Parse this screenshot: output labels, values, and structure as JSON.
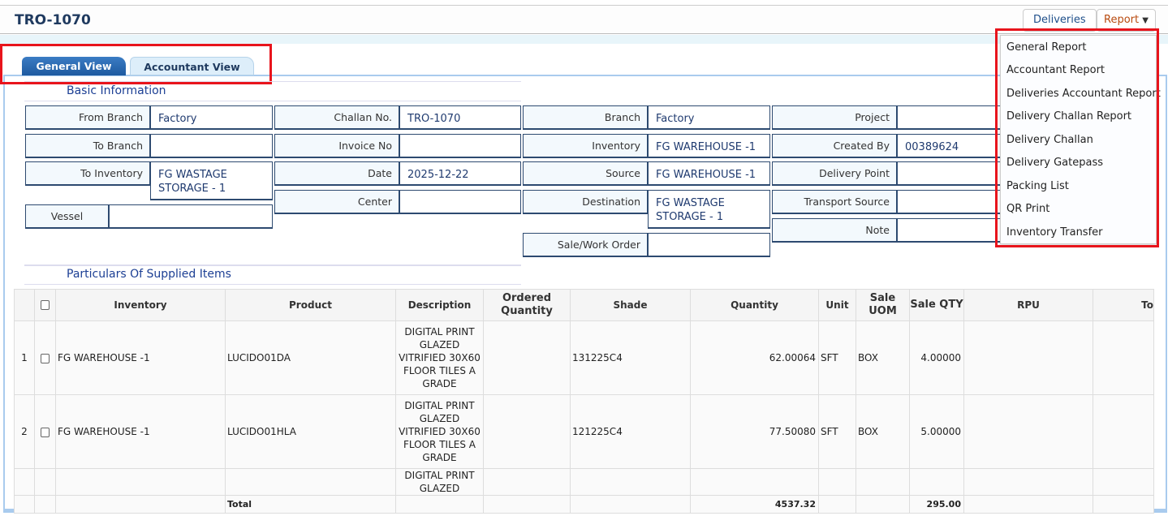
{
  "header": {
    "title": "TRO-1070",
    "deliveries_label": "Deliveries",
    "report_label": "Report",
    "report_icon": "chevron-down-icon"
  },
  "tabs": [
    {
      "label": "General View",
      "active": true
    },
    {
      "label": "Accountant View",
      "active": false
    }
  ],
  "basic": {
    "title": "Basic Information",
    "fields": [
      {
        "label": "From Branch",
        "value": "Factory"
      },
      {
        "label": "To Branch",
        "value": ""
      },
      {
        "label": "To Inventory",
        "value": "FG WASTAGE STORAGE - 1"
      },
      {
        "label": "Vessel",
        "value": ""
      },
      {
        "label": "Challan No.",
        "value": "TRO-1070"
      },
      {
        "label": "Invoice No",
        "value": ""
      },
      {
        "label": "Date",
        "value": "2025-12-22"
      },
      {
        "label": "Center",
        "value": ""
      },
      {
        "label": "Branch",
        "value": "Factory"
      },
      {
        "label": "Inventory",
        "value": "FG WAREHOUSE -1"
      },
      {
        "label": "Source",
        "value": "FG WAREHOUSE -1"
      },
      {
        "label": "Destination",
        "value": "FG WASTAGE STORAGE - 1"
      },
      {
        "label": "Sale/Work Order",
        "value": ""
      },
      {
        "label": "Project",
        "value": ""
      },
      {
        "label": "Created By",
        "value": "00389624"
      },
      {
        "label": "Delivery Point",
        "value": ""
      },
      {
        "label": "Transport Source",
        "value": ""
      },
      {
        "label": "Note",
        "value": ""
      }
    ]
  },
  "items": {
    "title": "Particulars Of Supplied Items",
    "columns": [
      "",
      "",
      "Inventory",
      "Product",
      "Description",
      "Ordered Quantity",
      "Shade",
      "Quantity",
      "Unit",
      "Sale UOM",
      "Sale QTY",
      "RPU",
      "To"
    ],
    "rows": [
      {
        "no": "1",
        "inventory": "FG WAREHOUSE -1",
        "product": "LUCIDO01DA",
        "description": "DIGITAL PRINT GLAZED VITRIFIED 30X60 FLOOR TILES A GRADE",
        "ordered": "",
        "shade": "131225C4",
        "quantity": "62.00064",
        "unit": "SFT",
        "sale_uom": "BOX",
        "sale_qty": "4.00000",
        "rpu": ""
      },
      {
        "no": "2",
        "inventory": "FG WAREHOUSE -1",
        "product": "LUCIDO01HLA",
        "description": "DIGITAL PRINT GLAZED VITRIFIED 30X60 FLOOR TILES A GRADE",
        "ordered": "",
        "shade": "121225C4",
        "quantity": "77.50080",
        "unit": "SFT",
        "sale_uom": "BOX",
        "sale_qty": "5.00000",
        "rpu": ""
      },
      {
        "description": "DIGITAL PRINT GLAZED"
      }
    ],
    "total": {
      "label": "Total",
      "quantity": "4537.32",
      "sale_qty": "295.00"
    }
  },
  "report_menu": [
    "General Report",
    "Accountant Report",
    "Deliveries Accountant Report",
    "Delivery Challan Report",
    "Delivery Challan",
    "Delivery Gatepass",
    "Packing List",
    "QR Print",
    "Inventory Transfer"
  ],
  "colors": {
    "accent": "#1f3a5f",
    "highlight": "#e8141c",
    "report": "#b84a0f"
  }
}
